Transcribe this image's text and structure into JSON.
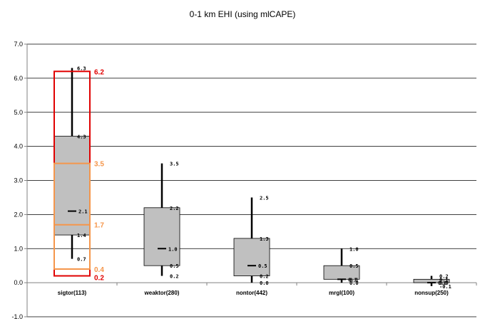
{
  "chart_data": {
    "type": "box",
    "title": "0-1 km EHI (using mlCAPE)",
    "xlabel": "",
    "ylabel": "",
    "ylim": [
      -1.0,
      7.0
    ],
    "yticks": [
      "-1.0",
      "0.0",
      "1.0",
      "2.0",
      "3.0",
      "4.0",
      "5.0",
      "6.0",
      "7.0"
    ],
    "grid": true,
    "categories": [
      "sigtor(113)",
      "weaktor(280)",
      "nontor(442)",
      "mrgl(100)",
      "nonsup(250)"
    ],
    "box_color": "#c0c0c0",
    "series": [
      {
        "category": "sigtor(113)",
        "min": 0.7,
        "q1": 1.4,
        "median": 2.1,
        "q3": 4.3,
        "max": 6.3,
        "labels": {
          "min": "0.7",
          "q1": "1.4",
          "median": "2.1",
          "q3": "4.3",
          "max": "6.3"
        }
      },
      {
        "category": "weaktor(280)",
        "min": 0.2,
        "q1": 0.5,
        "median": 1.0,
        "q3": 2.2,
        "max": 3.5,
        "labels": {
          "min": "0.2",
          "q1": "0.5",
          "median": "1.0",
          "q3": "2.2",
          "max": "3.5"
        }
      },
      {
        "category": "nontor(442)",
        "min": 0.0,
        "q1": 0.2,
        "median": 0.5,
        "q3": 1.3,
        "max": 2.5,
        "labels": {
          "min": "0.0",
          "q1": "0.2",
          "median": "0.5",
          "q3": "1.3",
          "max": "2.5"
        }
      },
      {
        "category": "mrgl(100)",
        "min": 0.0,
        "q1": 0.1,
        "median": 0.1,
        "q3": 0.5,
        "max": 1.0,
        "labels": {
          "min": "0.0",
          "q1": "0.1",
          "median": "0.1",
          "q3": "0.5",
          "max": "1.0"
        }
      },
      {
        "category": "nonsup(250)",
        "min": -0.1,
        "q1": 0.0,
        "median": 0.0,
        "q3": 0.1,
        "max": 0.2,
        "labels": {
          "min": "-0.1",
          "q1": "0.0",
          "median": "0.0",
          "q3": "0.1",
          "max": "0.2"
        }
      }
    ],
    "annotations": {
      "outer": {
        "category": "sigtor(113)",
        "low": 0.2,
        "high": 6.2,
        "low_label": "0.2",
        "high_label": "6.2",
        "color": "#e00000"
      },
      "inner": {
        "category": "sigtor(113)",
        "low": 0.4,
        "q1": 1.7,
        "high": 3.5,
        "low_label": "0.4",
        "q1_label": "1.7",
        "high_label": "3.5",
        "color": "#f5964b"
      }
    }
  }
}
